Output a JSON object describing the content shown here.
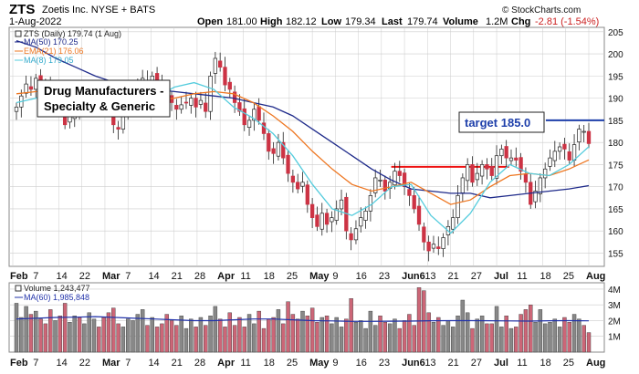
{
  "header": {
    "symbol": "ZTS",
    "company": "Zoetis Inc.  NYSE + BATS",
    "date": "1-Aug-2022",
    "open_label": "Open",
    "open": "181.00",
    "high_label": "High",
    "high": "182.12",
    "low_label": "Low",
    "low": "179.34",
    "last_label": "Last",
    "last": "179.74",
    "volume_label": "Volume",
    "volume": "1.2M",
    "chg_label": "Chg",
    "chg": "-2.81 (-1.54%)",
    "watermark": "© StockCharts.com"
  },
  "annotations": {
    "sector": [
      "Drug Manufacturers -",
      "Specialty & Generic"
    ],
    "target": "target 185.0"
  },
  "colors": {
    "up": "#ffffff",
    "down": "#cc3344",
    "candle_outline": "#222222",
    "ma50": "#1e2a8a",
    "ema21": "#ee7722",
    "ma8": "#55ccdd",
    "vol_up": "#888888",
    "vol_down": "#cc6677",
    "vol_ma": "#2233aa",
    "target_line": "#1e3faa",
    "support_line": "#ee1111",
    "grid": "#cccccc"
  },
  "chart_data": [
    {
      "type": "candlestick",
      "title": "ZTS (Daily) 179.74 (1 Aug)",
      "y_ticks": [
        155,
        160,
        165,
        170,
        175,
        180,
        185,
        190,
        195,
        200,
        205
      ],
      "ylim": [
        152,
        206
      ],
      "x_labels": [
        "Feb",
        "7",
        "14",
        "22",
        "Mar",
        "7",
        "14",
        "21",
        "28",
        "Apr",
        "11",
        "18",
        "25",
        "May",
        "9",
        "16",
        "23",
        "Jun6",
        "13",
        "21",
        "27",
        "Jul",
        "11",
        "18",
        "25",
        "Aug"
      ],
      "legend": [
        "ZTS (Daily) 179.74 (1 Aug)",
        "MA(50) 170.25",
        "EMA(21) 176.06",
        "MA(8) 179.05"
      ],
      "closes": [
        188.0,
        190.5,
        193.2,
        192.0,
        194.5,
        193.0,
        192.5,
        191.0,
        193.0,
        191.5,
        184.0,
        186.0,
        188.0,
        187.5,
        188.5,
        189.0,
        191.0,
        189.5,
        188.0,
        187.5,
        184.0,
        183.0,
        186.0,
        189.0,
        191.0,
        193.0,
        194.5,
        193.5,
        195.0,
        194.0,
        191.5,
        190.0,
        189.0,
        187.5,
        188.5,
        189.0,
        190.0,
        188.0,
        189.5,
        187.0,
        195.0,
        199.0,
        197.0,
        193.0,
        192.0,
        189.0,
        187.0,
        184.0,
        185.0,
        187.5,
        185.0,
        182.0,
        178.0,
        177.5,
        180.0,
        176.5,
        173.0,
        171.0,
        169.5,
        171.0,
        166.0,
        163.0,
        161.0,
        164.0,
        161.5,
        163.0,
        165.0,
        167.0,
        160.0,
        158.0,
        160.5,
        163.0,
        164.5,
        168.0,
        172.0,
        171.5,
        169.0,
        171.0,
        173.5,
        172.5,
        170.0,
        168.0,
        165.0,
        161.5,
        157.5,
        155.5,
        157.0,
        156.0,
        158.5,
        161.0,
        163.0,
        168.0,
        172.0,
        175.0,
        171.0,
        173.0,
        175.0,
        174.0,
        172.5,
        177.0,
        178.5,
        176.5,
        176.5,
        176.0,
        173.5,
        171.0,
        166.0,
        169.0,
        172.0,
        174.0,
        176.5,
        178.0,
        179.0,
        178.5,
        176.0,
        179.5,
        183.0,
        182.5,
        179.74
      ],
      "series": [
        {
          "name": "MA(50) 170.25",
          "values": [
            203,
            201.5,
            199,
            197,
            195,
            193.5,
            193,
            192,
            191.5,
            191,
            190.5,
            190,
            189,
            188,
            186,
            183,
            180,
            177,
            174,
            171.5,
            169.5,
            169,
            168.5,
            168.5,
            167.5,
            168,
            168.5,
            169,
            169.5,
            170.25
          ]
        },
        {
          "name": "EMA(21) 176.06",
          "values": [
            191,
            191.5,
            191.5,
            191,
            190.5,
            190,
            189.5,
            189.5,
            190,
            191,
            191.5,
            191,
            189,
            186,
            182.5,
            178,
            174,
            170.5,
            169,
            170,
            171,
            168.5,
            166,
            167,
            170,
            172.5,
            173,
            172.5,
            174,
            176.06
          ]
        },
        {
          "name": "MA(8) 179.05",
          "values": [
            189,
            190,
            192.5,
            192,
            190,
            187.5,
            186.5,
            190,
            192.5,
            193.5,
            192,
            188,
            185.5,
            182,
            177,
            170.5,
            165,
            163.5,
            166,
            170,
            170.5,
            163.5,
            159.5,
            164,
            171,
            175,
            173,
            172.5,
            175,
            179.05
          ]
        }
      ],
      "target_level": 185.0,
      "support_level": 174.5,
      "support_start_fraction": 0.642,
      "support_end_fraction": 0.84
    },
    {
      "type": "bar",
      "title": "Volume 1,243,477",
      "legend": [
        "Volume 1,243,477",
        "MA(60) 1,985,848"
      ],
      "y_ticks": [
        "1M",
        "2M",
        "3M",
        "4M"
      ],
      "ylim": [
        0,
        4.4
      ],
      "volumes": [
        3.1,
        2.2,
        2.9,
        2.4,
        2.6,
        2.1,
        1.8,
        2.7,
        2.0,
        2.3,
        3.1,
        1.9,
        2.3,
        2.2,
        1.8,
        2.5,
        2.1,
        1.6,
        2.2,
        2.5,
        2.8,
        1.8,
        1.6,
        2.1,
        2.0,
        2.4,
        2.7,
        1.7,
        2.2,
        1.6,
        1.8,
        2.4,
        2.0,
        1.7,
        2.3,
        1.5,
        2.1,
        1.6,
        2.2,
        1.7,
        2.3,
        2.9,
        2.1,
        1.6,
        2.5,
        1.7,
        2.2,
        1.6,
        2.4,
        1.8,
        2.6,
        1.5,
        2.1,
        2.2,
        2.7,
        1.8,
        3.2,
        2.4,
        2.1,
        2.6,
        2.3,
        2.8,
        1.9,
        2.2,
        2.3,
        1.8,
        2.2,
        1.6,
        2.1,
        3.4,
        1.9,
        2.0,
        1.5,
        2.6,
        1.7,
        2.3,
        1.9,
        1.8,
        2.1,
        1.5,
        2.0,
        2.4,
        1.7,
        4.1,
        3.9,
        2.5,
        1.9,
        2.2,
        1.7,
        2.0,
        1.6,
        2.3,
        3.3,
        2.5,
        1.5,
        2.1,
        2.3,
        1.8,
        1.8,
        2.9,
        1.6,
        2.3,
        1.5,
        1.6,
        2.4,
        2.7,
        3.0,
        1.9,
        2.7,
        1.8,
        1.9,
        2.1,
        1.6,
        2.2,
        1.9,
        2.4,
        2.1,
        1.7,
        1.24
      ],
      "ma_values": [
        2.1,
        2.15,
        2.2,
        2.22,
        2.25,
        2.2,
        2.15,
        2.1,
        2.05,
        2.0,
        2.0,
        2.05,
        2.1,
        2.1,
        2.05,
        2.0,
        1.98,
        1.95,
        1.95,
        1.96,
        1.97,
        1.99,
        2.0,
        2.0,
        1.99,
        1.98,
        1.97,
        1.99,
        2.0,
        1.985
      ]
    }
  ]
}
